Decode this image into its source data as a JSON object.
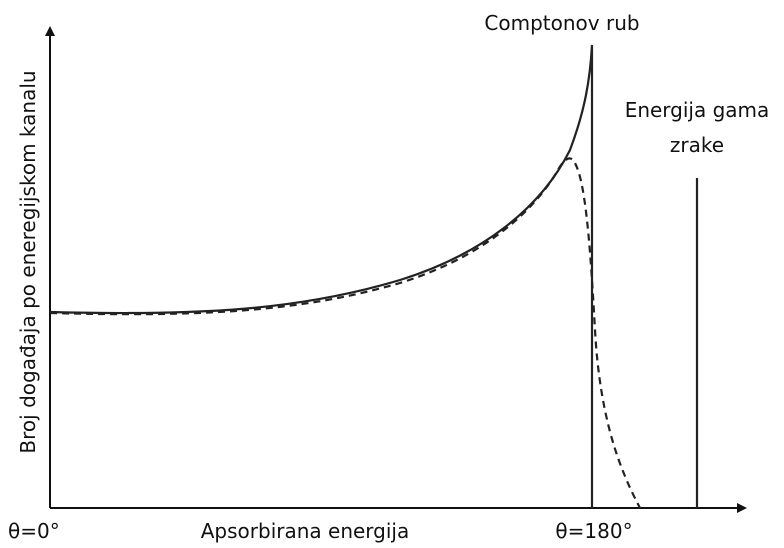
{
  "labels": {
    "compton_edge": "Comptonov rub",
    "gamma_energy": [
      "Energija gama",
      "zrake"
    ],
    "y_axis": "Broj događaja po eneregijskom kanalu",
    "x_axis": "Apsorbirana energija",
    "x_start": "θ=0°",
    "x_end": "θ=180°"
  }
}
